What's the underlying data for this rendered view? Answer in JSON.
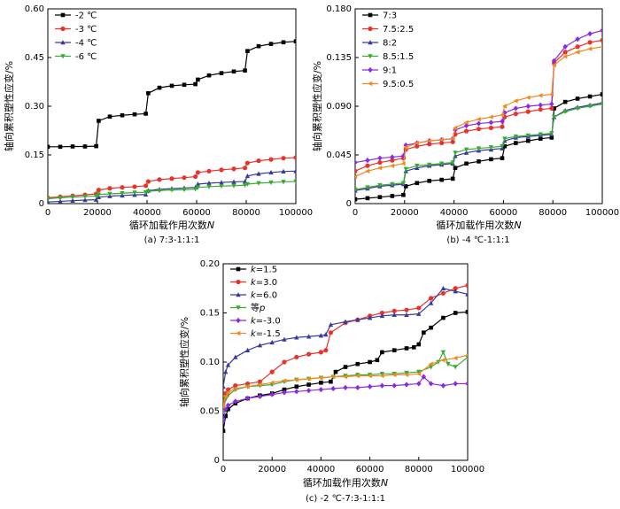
{
  "chart_data": [
    {
      "type": "line",
      "id": "a",
      "caption": "(a) 7:3-1:1:1",
      "xlabel": "循环加载作用次数N",
      "ylabel": "轴向累积塑性应变/%",
      "xlim": [
        0,
        100000
      ],
      "ylim": [
        0,
        0.6
      ],
      "xticks": [
        "0",
        "20000",
        "40000",
        "60000",
        "80000",
        "100000"
      ],
      "yticks": [
        "0",
        "0.15",
        "0.30",
        "0.45",
        "0.60"
      ],
      "legend_position": "top-left",
      "series": [
        {
          "name": "-2 ℃",
          "color": "#000000",
          "marker": "square",
          "x": [
            0,
            5000,
            10000,
            15000,
            19500,
            20500,
            25000,
            30000,
            35000,
            39500,
            40500,
            45000,
            50000,
            55000,
            59500,
            60500,
            65000,
            70000,
            75000,
            79500,
            80500,
            85000,
            90000,
            95000,
            100000
          ],
          "y": [
            0.175,
            0.175,
            0.176,
            0.176,
            0.177,
            0.255,
            0.268,
            0.272,
            0.275,
            0.277,
            0.34,
            0.357,
            0.363,
            0.366,
            0.368,
            0.382,
            0.395,
            0.402,
            0.407,
            0.41,
            0.47,
            0.485,
            0.492,
            0.497,
            0.5
          ]
        },
        {
          "name": "-3 ℃",
          "color": "#e8332a",
          "marker": "circle",
          "x": [
            0,
            5000,
            10000,
            15000,
            19500,
            20500,
            25000,
            30000,
            35000,
            39500,
            40500,
            45000,
            50000,
            55000,
            59500,
            60500,
            65000,
            70000,
            75000,
            79500,
            80500,
            85000,
            90000,
            95000,
            100000
          ],
          "y": [
            0.018,
            0.021,
            0.024,
            0.027,
            0.03,
            0.042,
            0.047,
            0.05,
            0.052,
            0.055,
            0.068,
            0.074,
            0.077,
            0.08,
            0.083,
            0.096,
            0.1,
            0.104,
            0.107,
            0.11,
            0.125,
            0.132,
            0.136,
            0.14,
            0.142
          ]
        },
        {
          "name": "-4 ℃",
          "color": "#3a3a9c",
          "marker": "triangle-up",
          "x": [
            0,
            5000,
            10000,
            15000,
            19500,
            20500,
            25000,
            30000,
            35000,
            39500,
            40500,
            45000,
            50000,
            55000,
            59500,
            60500,
            65000,
            70000,
            75000,
            79500,
            80500,
            85000,
            90000,
            95000,
            100000
          ],
          "y": [
            0.005,
            0.007,
            0.009,
            0.011,
            0.012,
            0.02,
            0.023,
            0.025,
            0.027,
            0.028,
            0.04,
            0.044,
            0.046,
            0.048,
            0.05,
            0.06,
            0.063,
            0.065,
            0.067,
            0.068,
            0.085,
            0.092,
            0.096,
            0.099,
            0.1
          ]
        },
        {
          "name": "-6 ℃",
          "color": "#3aaa35",
          "marker": "triangle-down",
          "x": [
            0,
            5000,
            10000,
            15000,
            19500,
            20500,
            25000,
            30000,
            35000,
            39500,
            40500,
            45000,
            50000,
            55000,
            59500,
            60500,
            65000,
            70000,
            75000,
            79500,
            80500,
            85000,
            90000,
            95000,
            100000
          ],
          "y": [
            0.015,
            0.018,
            0.02,
            0.022,
            0.023,
            0.028,
            0.03,
            0.032,
            0.034,
            0.035,
            0.038,
            0.04,
            0.042,
            0.043,
            0.045,
            0.05,
            0.052,
            0.054,
            0.055,
            0.057,
            0.06,
            0.063,
            0.065,
            0.067,
            0.068
          ]
        }
      ]
    },
    {
      "type": "line",
      "id": "b",
      "caption": "(b) -4 ℃-1:1:1",
      "xlabel": "循环加载作用次数N",
      "ylabel": "轴向累积塑性应变/%",
      "xlim": [
        0,
        100000
      ],
      "ylim": [
        0,
        0.18
      ],
      "xticks": [
        "0",
        "20000",
        "40000",
        "60000",
        "80000",
        "100000"
      ],
      "yticks": [
        "0",
        "0.045",
        "0.090",
        "0.135",
        "0.180"
      ],
      "legend_position": "top-left",
      "series": [
        {
          "name": "7:3",
          "color": "#000000",
          "marker": "square",
          "x": [
            0,
            5000,
            10000,
            15000,
            19500,
            20500,
            25000,
            30000,
            35000,
            39500,
            40500,
            45000,
            50000,
            55000,
            59500,
            60500,
            65000,
            70000,
            75000,
            79500,
            80500,
            85000,
            90000,
            95000,
            100000
          ],
          "y": [
            0.004,
            0.005,
            0.006,
            0.007,
            0.008,
            0.016,
            0.019,
            0.021,
            0.022,
            0.023,
            0.033,
            0.037,
            0.039,
            0.041,
            0.042,
            0.053,
            0.056,
            0.058,
            0.06,
            0.061,
            0.088,
            0.094,
            0.097,
            0.099,
            0.101
          ]
        },
        {
          "name": "7.5:2.5",
          "color": "#e8332a",
          "marker": "circle",
          "x": [
            0,
            5000,
            10000,
            15000,
            19500,
            20500,
            25000,
            30000,
            35000,
            39500,
            40500,
            45000,
            50000,
            55000,
            59500,
            60500,
            65000,
            70000,
            75000,
            79500,
            80500,
            85000,
            90000,
            95000,
            100000
          ],
          "y": [
            0.03,
            0.035,
            0.038,
            0.04,
            0.042,
            0.05,
            0.053,
            0.055,
            0.056,
            0.057,
            0.064,
            0.067,
            0.069,
            0.07,
            0.071,
            0.08,
            0.083,
            0.085,
            0.087,
            0.088,
            0.13,
            0.14,
            0.145,
            0.149,
            0.151
          ]
        },
        {
          "name": "8:2",
          "color": "#3a3a9c",
          "marker": "triangle-up",
          "x": [
            0,
            5000,
            10000,
            15000,
            19500,
            20500,
            25000,
            30000,
            35000,
            39500,
            40500,
            45000,
            50000,
            55000,
            59500,
            60500,
            65000,
            70000,
            75000,
            79500,
            80500,
            85000,
            90000,
            95000,
            100000
          ],
          "y": [
            0.012,
            0.014,
            0.016,
            0.017,
            0.018,
            0.03,
            0.033,
            0.035,
            0.036,
            0.037,
            0.044,
            0.047,
            0.049,
            0.05,
            0.051,
            0.058,
            0.061,
            0.062,
            0.063,
            0.064,
            0.08,
            0.086,
            0.089,
            0.091,
            0.093
          ]
        },
        {
          "name": "8.5:1.5",
          "color": "#3aaa35",
          "marker": "triangle-down",
          "x": [
            0,
            5000,
            10000,
            15000,
            19500,
            20500,
            25000,
            30000,
            35000,
            39500,
            40500,
            45000,
            50000,
            55000,
            59500,
            60500,
            65000,
            70000,
            75000,
            79500,
            80500,
            85000,
            90000,
            95000,
            100000
          ],
          "y": [
            0.013,
            0.015,
            0.017,
            0.018,
            0.019,
            0.032,
            0.035,
            0.036,
            0.037,
            0.038,
            0.047,
            0.05,
            0.051,
            0.052,
            0.053,
            0.06,
            0.062,
            0.063,
            0.064,
            0.065,
            0.08,
            0.085,
            0.088,
            0.09,
            0.092
          ]
        },
        {
          "name": "9:1",
          "color": "#8a2be2",
          "marker": "diamond",
          "x": [
            0,
            5000,
            10000,
            15000,
            19500,
            20500,
            25000,
            30000,
            35000,
            39500,
            40500,
            45000,
            50000,
            55000,
            59500,
            60500,
            65000,
            70000,
            75000,
            79500,
            80500,
            85000,
            90000,
            95000,
            100000
          ],
          "y": [
            0.038,
            0.04,
            0.042,
            0.043,
            0.044,
            0.054,
            0.056,
            0.058,
            0.059,
            0.06,
            0.068,
            0.072,
            0.074,
            0.075,
            0.076,
            0.084,
            0.088,
            0.09,
            0.091,
            0.092,
            0.132,
            0.145,
            0.152,
            0.157,
            0.16
          ]
        },
        {
          "name": "9.5:0.5",
          "color": "#f08a24",
          "marker": "triangle-left",
          "x": [
            0,
            5000,
            10000,
            15000,
            19500,
            20500,
            25000,
            30000,
            35000,
            39500,
            40500,
            45000,
            50000,
            55000,
            59500,
            60500,
            65000,
            70000,
            75000,
            79500,
            80500,
            85000,
            90000,
            95000,
            100000
          ],
          "y": [
            0.025,
            0.03,
            0.033,
            0.035,
            0.037,
            0.052,
            0.056,
            0.058,
            0.059,
            0.06,
            0.07,
            0.075,
            0.078,
            0.08,
            0.082,
            0.09,
            0.095,
            0.098,
            0.1,
            0.101,
            0.128,
            0.136,
            0.14,
            0.143,
            0.145
          ]
        }
      ]
    },
    {
      "type": "line",
      "id": "c",
      "caption": "(c) -2 ℃-7:3-1:1:1",
      "xlabel": "循环加载作用次数N",
      "ylabel": "轴向累积塑性应变/%",
      "xlim": [
        0,
        100000
      ],
      "ylim": [
        0,
        0.2
      ],
      "xticks": [
        "0",
        "20000",
        "40000",
        "60000",
        "80000",
        "100000"
      ],
      "yticks": [
        "0",
        "0.05",
        "0.10",
        "0.15",
        "0.20"
      ],
      "legend_position": "top-left",
      "series": [
        {
          "name": "k=1.5",
          "color": "#000000",
          "marker": "square",
          "x": [
            0,
            1000,
            2000,
            5000,
            10000,
            15000,
            20000,
            25000,
            30000,
            35000,
            40000,
            44000,
            46000,
            50000,
            55000,
            60000,
            63000,
            65000,
            70000,
            75000,
            78000,
            80000,
            82000,
            85000,
            90000,
            95000,
            100000
          ],
          "y": [
            0.03,
            0.045,
            0.052,
            0.058,
            0.063,
            0.066,
            0.068,
            0.072,
            0.075,
            0.077,
            0.079,
            0.08,
            0.09,
            0.095,
            0.098,
            0.1,
            0.102,
            0.11,
            0.112,
            0.114,
            0.115,
            0.118,
            0.13,
            0.135,
            0.145,
            0.15,
            0.151
          ]
        },
        {
          "name": "k=3.0",
          "color": "#e8332a",
          "marker": "circle",
          "x": [
            0,
            1000,
            2000,
            5000,
            10000,
            15000,
            20000,
            25000,
            30000,
            35000,
            40000,
            42000,
            44000,
            50000,
            55000,
            60000,
            65000,
            70000,
            75000,
            80000,
            85000,
            90000,
            95000,
            100000
          ],
          "y": [
            0.06,
            0.068,
            0.072,
            0.076,
            0.078,
            0.08,
            0.09,
            0.1,
            0.105,
            0.108,
            0.11,
            0.112,
            0.13,
            0.14,
            0.143,
            0.147,
            0.15,
            0.152,
            0.153,
            0.155,
            0.165,
            0.17,
            0.175,
            0.178
          ]
        },
        {
          "name": "k=6.0",
          "color": "#3a3a9c",
          "marker": "triangle-up",
          "x": [
            0,
            1000,
            2000,
            5000,
            10000,
            15000,
            20000,
            25000,
            30000,
            35000,
            40000,
            42000,
            44000,
            50000,
            55000,
            60000,
            65000,
            70000,
            75000,
            80000,
            85000,
            90000,
            95000,
            100000
          ],
          "y": [
            0.075,
            0.09,
            0.097,
            0.105,
            0.112,
            0.117,
            0.12,
            0.123,
            0.125,
            0.126,
            0.127,
            0.128,
            0.138,
            0.141,
            0.143,
            0.145,
            0.147,
            0.148,
            0.148,
            0.149,
            0.16,
            0.175,
            0.172,
            0.169
          ]
        },
        {
          "name": "等p",
          "color": "#3aaa35",
          "marker": "triangle-down",
          "x": [
            0,
            1000,
            2000,
            5000,
            10000,
            15000,
            20000,
            25000,
            30000,
            35000,
            40000,
            45000,
            50000,
            55000,
            60000,
            65000,
            70000,
            75000,
            80000,
            85000,
            88000,
            90000,
            92000,
            95000,
            100000
          ],
          "y": [
            0.05,
            0.062,
            0.066,
            0.072,
            0.075,
            0.076,
            0.077,
            0.08,
            0.082,
            0.083,
            0.084,
            0.085,
            0.086,
            0.087,
            0.087,
            0.088,
            0.088,
            0.089,
            0.09,
            0.095,
            0.1,
            0.11,
            0.098,
            0.095,
            0.105
          ]
        },
        {
          "name": "k=-3.0",
          "color": "#8a2be2",
          "marker": "diamond",
          "x": [
            0,
            1000,
            2000,
            5000,
            10000,
            15000,
            20000,
            25000,
            30000,
            35000,
            40000,
            45000,
            50000,
            55000,
            60000,
            65000,
            70000,
            75000,
            80000,
            82000,
            85000,
            90000,
            95000,
            100000
          ],
          "y": [
            0.04,
            0.052,
            0.056,
            0.06,
            0.063,
            0.065,
            0.067,
            0.069,
            0.07,
            0.071,
            0.072,
            0.073,
            0.074,
            0.074,
            0.075,
            0.076,
            0.076,
            0.077,
            0.078,
            0.085,
            0.078,
            0.076,
            0.078,
            0.078
          ]
        },
        {
          "name": "k=-1.5",
          "color": "#f08a24",
          "marker": "triangle-left",
          "x": [
            0,
            1000,
            2000,
            5000,
            10000,
            15000,
            20000,
            25000,
            30000,
            35000,
            40000,
            45000,
            50000,
            55000,
            60000,
            65000,
            70000,
            75000,
            80000,
            85000,
            90000,
            95000,
            100000
          ],
          "y": [
            0.055,
            0.065,
            0.069,
            0.073,
            0.075,
            0.077,
            0.079,
            0.081,
            0.082,
            0.083,
            0.084,
            0.085,
            0.085,
            0.086,
            0.086,
            0.086,
            0.087,
            0.087,
            0.088,
            0.098,
            0.102,
            0.104,
            0.107
          ]
        }
      ]
    }
  ]
}
